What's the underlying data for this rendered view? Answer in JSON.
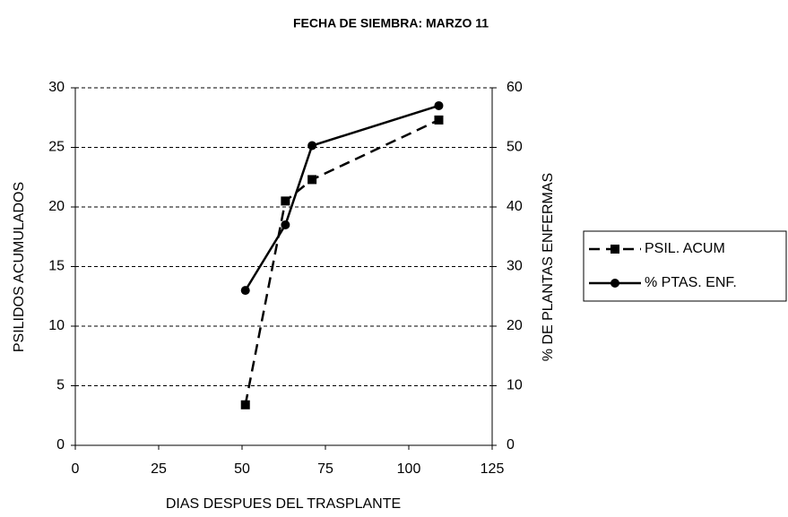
{
  "chart_data": {
    "type": "line",
    "title": "FECHA DE SIEMBRA: MARZO 11",
    "x_label": "DIAS DESPUES DEL TRASPLANTE",
    "y_label": "PSILIDOS ACUMULADOS",
    "y2_label": "% DE PLANTAS ENFERMAS",
    "x": [
      51,
      63,
      71,
      109
    ],
    "series": [
      {
        "name": "PSIL. ACUM",
        "color": "#000000",
        "dash": true,
        "marker": "square",
        "values": [
          3.4,
          20.5,
          22.3,
          27.3
        ]
      },
      {
        "name": "% PTAS. ENF.",
        "color": "#000000",
        "dash": false,
        "marker": "circle",
        "axis": "y2",
        "values": [
          26,
          37,
          50.3,
          57
        ]
      }
    ],
    "xlim": [
      0,
      125
    ],
    "xticks": [
      0,
      25,
      50,
      75,
      100,
      125
    ],
    "ylim": [
      0,
      30
    ],
    "yticks": [
      0,
      5,
      10,
      15,
      20,
      25,
      30
    ],
    "y2lim": [
      0,
      60
    ],
    "y2ticks": [
      0,
      10,
      20,
      30,
      40,
      50,
      60
    ],
    "grid": true,
    "legend": "right"
  }
}
